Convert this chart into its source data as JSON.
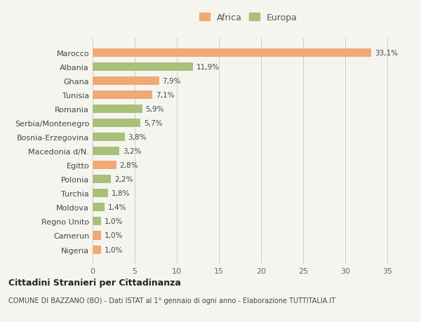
{
  "categories": [
    "Nigeria",
    "Camerun",
    "Regno Unito",
    "Moldova",
    "Turchia",
    "Polonia",
    "Egitto",
    "Macedonia d/N.",
    "Bosnia-Erzegovina",
    "Serbia/Montenegro",
    "Romania",
    "Tunisia",
    "Ghana",
    "Albania",
    "Marocco"
  ],
  "values": [
    1.0,
    1.0,
    1.0,
    1.4,
    1.8,
    2.2,
    2.8,
    3.2,
    3.8,
    5.7,
    5.9,
    7.1,
    7.9,
    11.9,
    33.1
  ],
  "colors": [
    "#f0a875",
    "#f0a875",
    "#a8c07a",
    "#a8c07a",
    "#a8c07a",
    "#a8c07a",
    "#f0a875",
    "#a8c07a",
    "#a8c07a",
    "#a8c07a",
    "#a8c07a",
    "#f0a875",
    "#f0a875",
    "#a8c07a",
    "#f0a875"
  ],
  "labels": [
    "1,0%",
    "1,0%",
    "1,0%",
    "1,4%",
    "1,8%",
    "2,2%",
    "2,8%",
    "3,2%",
    "3,8%",
    "5,7%",
    "5,9%",
    "7,1%",
    "7,9%",
    "11,9%",
    "33,1%"
  ],
  "africa_color": "#f0a875",
  "europa_color": "#a8c07a",
  "background_color": "#f5f5f0",
  "title": "Cittadini Stranieri per Cittadinanza",
  "subtitle": "COMUNE DI BAZZANO (BO) - Dati ISTAT al 1° gennaio di ogni anno - Elaborazione TUTTITALIA.IT",
  "xlim": [
    0,
    37
  ],
  "xticks": [
    0,
    5,
    10,
    15,
    20,
    25,
    30,
    35
  ]
}
